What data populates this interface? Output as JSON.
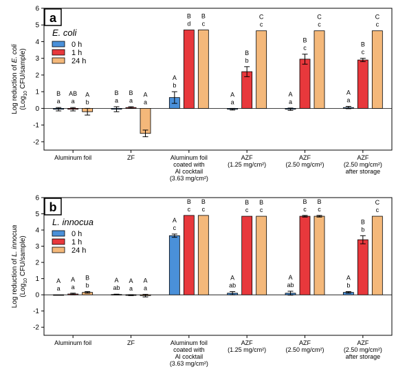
{
  "chart_data": [
    {
      "type": "bar",
      "panel_label": "a",
      "legend_title": "E. coli",
      "legend_placement": "top-left",
      "ylabel_main": "Log reduction of E. coli",
      "ylabel_sub": "(Log10 CFU/sample)",
      "ylim": [
        -2.5,
        6
      ],
      "yticks": [
        "6",
        "5",
        "4",
        "3",
        "2",
        "1",
        "0",
        "-1",
        "-2"
      ],
      "categories": [
        [
          "Aluminum foil"
        ],
        [
          "ZF"
        ],
        [
          "Aluminum foil",
          "coated with",
          "Al cocktail",
          "(3.63 mg/cm²)"
        ],
        [
          "AZF",
          "(1.25 mg/cm²)"
        ],
        [
          "AZF",
          "(2.50 mg/cm²)"
        ],
        [
          "AZF",
          "(2.50 mg/cm²)",
          "after storage"
        ]
      ],
      "series": [
        {
          "name": "0 h",
          "color": "#4a90d9",
          "values": [
            -0.05,
            -0.05,
            0.65,
            -0.05,
            -0.05,
            0.05
          ],
          "errors": [
            0.1,
            0.15,
            0.35,
            0.05,
            0.07,
            0.07
          ],
          "letters_top": [
            "B",
            "B",
            "A",
            "A",
            "A",
            "A"
          ],
          "letters_bottom": [
            "a",
            "a",
            "b",
            "a",
            "a",
            "a"
          ]
        },
        {
          "name": "1 h",
          "color": "#e8383c",
          "values": [
            -0.05,
            0.05,
            4.7,
            2.2,
            2.95,
            2.9
          ],
          "errors": [
            0.1,
            0.05,
            0,
            0.3,
            0.3,
            0.1
          ],
          "letters_top": [
            "AB",
            "B",
            "B",
            "B",
            "B",
            "B"
          ],
          "letters_bottom": [
            "a",
            "a",
            "d",
            "b",
            "c",
            "c"
          ]
        },
        {
          "name": "24 h",
          "color": "#f4b87a",
          "values": [
            -0.2,
            -1.5,
            4.7,
            4.65,
            4.65,
            4.65
          ],
          "errors": [
            0.2,
            0.2,
            0,
            0,
            0,
            0
          ],
          "letters_top": [
            "A",
            "A",
            "B",
            "C",
            "C",
            "C"
          ],
          "letters_bottom": [
            "b",
            "a",
            "c",
            "c",
            "c",
            "c"
          ]
        }
      ]
    },
    {
      "type": "bar",
      "panel_label": "b",
      "legend_title": "L. innocua",
      "legend_placement": "top-left",
      "ylabel_main": "Log reduction of L. innocua",
      "ylabel_sub": "(Log10 CFU/sample)",
      "ylim": [
        -2.5,
        6
      ],
      "yticks": [
        "6",
        "5",
        "4",
        "3",
        "2",
        "1",
        "0",
        "-1",
        "-2"
      ],
      "categories": [
        [
          "Aluminum foil"
        ],
        [
          "ZF"
        ],
        [
          "Aluminum foil",
          "coated with",
          "Al cocktail",
          "(3.63 mg/cm²)"
        ],
        [
          "AZF",
          "(1.25 mg/cm²)"
        ],
        [
          "AZF",
          "(2.50 mg/cm²)"
        ],
        [
          "AZF",
          "(2.50 mg/cm²)",
          "after storage"
        ]
      ],
      "series": [
        {
          "name": "0 h",
          "color": "#4a90d9",
          "values": [
            0,
            0.02,
            3.65,
            0.1,
            0.1,
            0.15
          ],
          "errors": [
            0,
            0.02,
            0.1,
            0.1,
            0.12,
            0.05
          ],
          "letters_top": [
            "A",
            "A",
            "A",
            "A",
            "A",
            "A"
          ],
          "letters_bottom": [
            "a",
            "ab",
            "c",
            "ab",
            "ab",
            "b"
          ]
        },
        {
          "name": "1 h",
          "color": "#e8383c",
          "values": [
            0.05,
            -0.02,
            4.9,
            4.85,
            4.85,
            3.4
          ],
          "errors": [
            0.05,
            0.03,
            0,
            0,
            0.05,
            0.25
          ],
          "letters_top": [
            "A",
            "A",
            "B",
            "B",
            "B",
            "B"
          ],
          "letters_bottom": [
            "a",
            "a",
            "c",
            "c",
            "c",
            "b"
          ]
        },
        {
          "name": "24 h",
          "color": "#f4b87a",
          "values": [
            0.15,
            -0.05,
            4.9,
            4.85,
            4.85,
            4.85
          ],
          "errors": [
            0.05,
            0.08,
            0,
            0,
            0.05,
            0
          ],
          "letters_top": [
            "B",
            "A",
            "B",
            "B",
            "B",
            "C"
          ],
          "letters_bottom": [
            "b",
            "a",
            "c",
            "c",
            "c",
            "c"
          ]
        }
      ]
    }
  ]
}
